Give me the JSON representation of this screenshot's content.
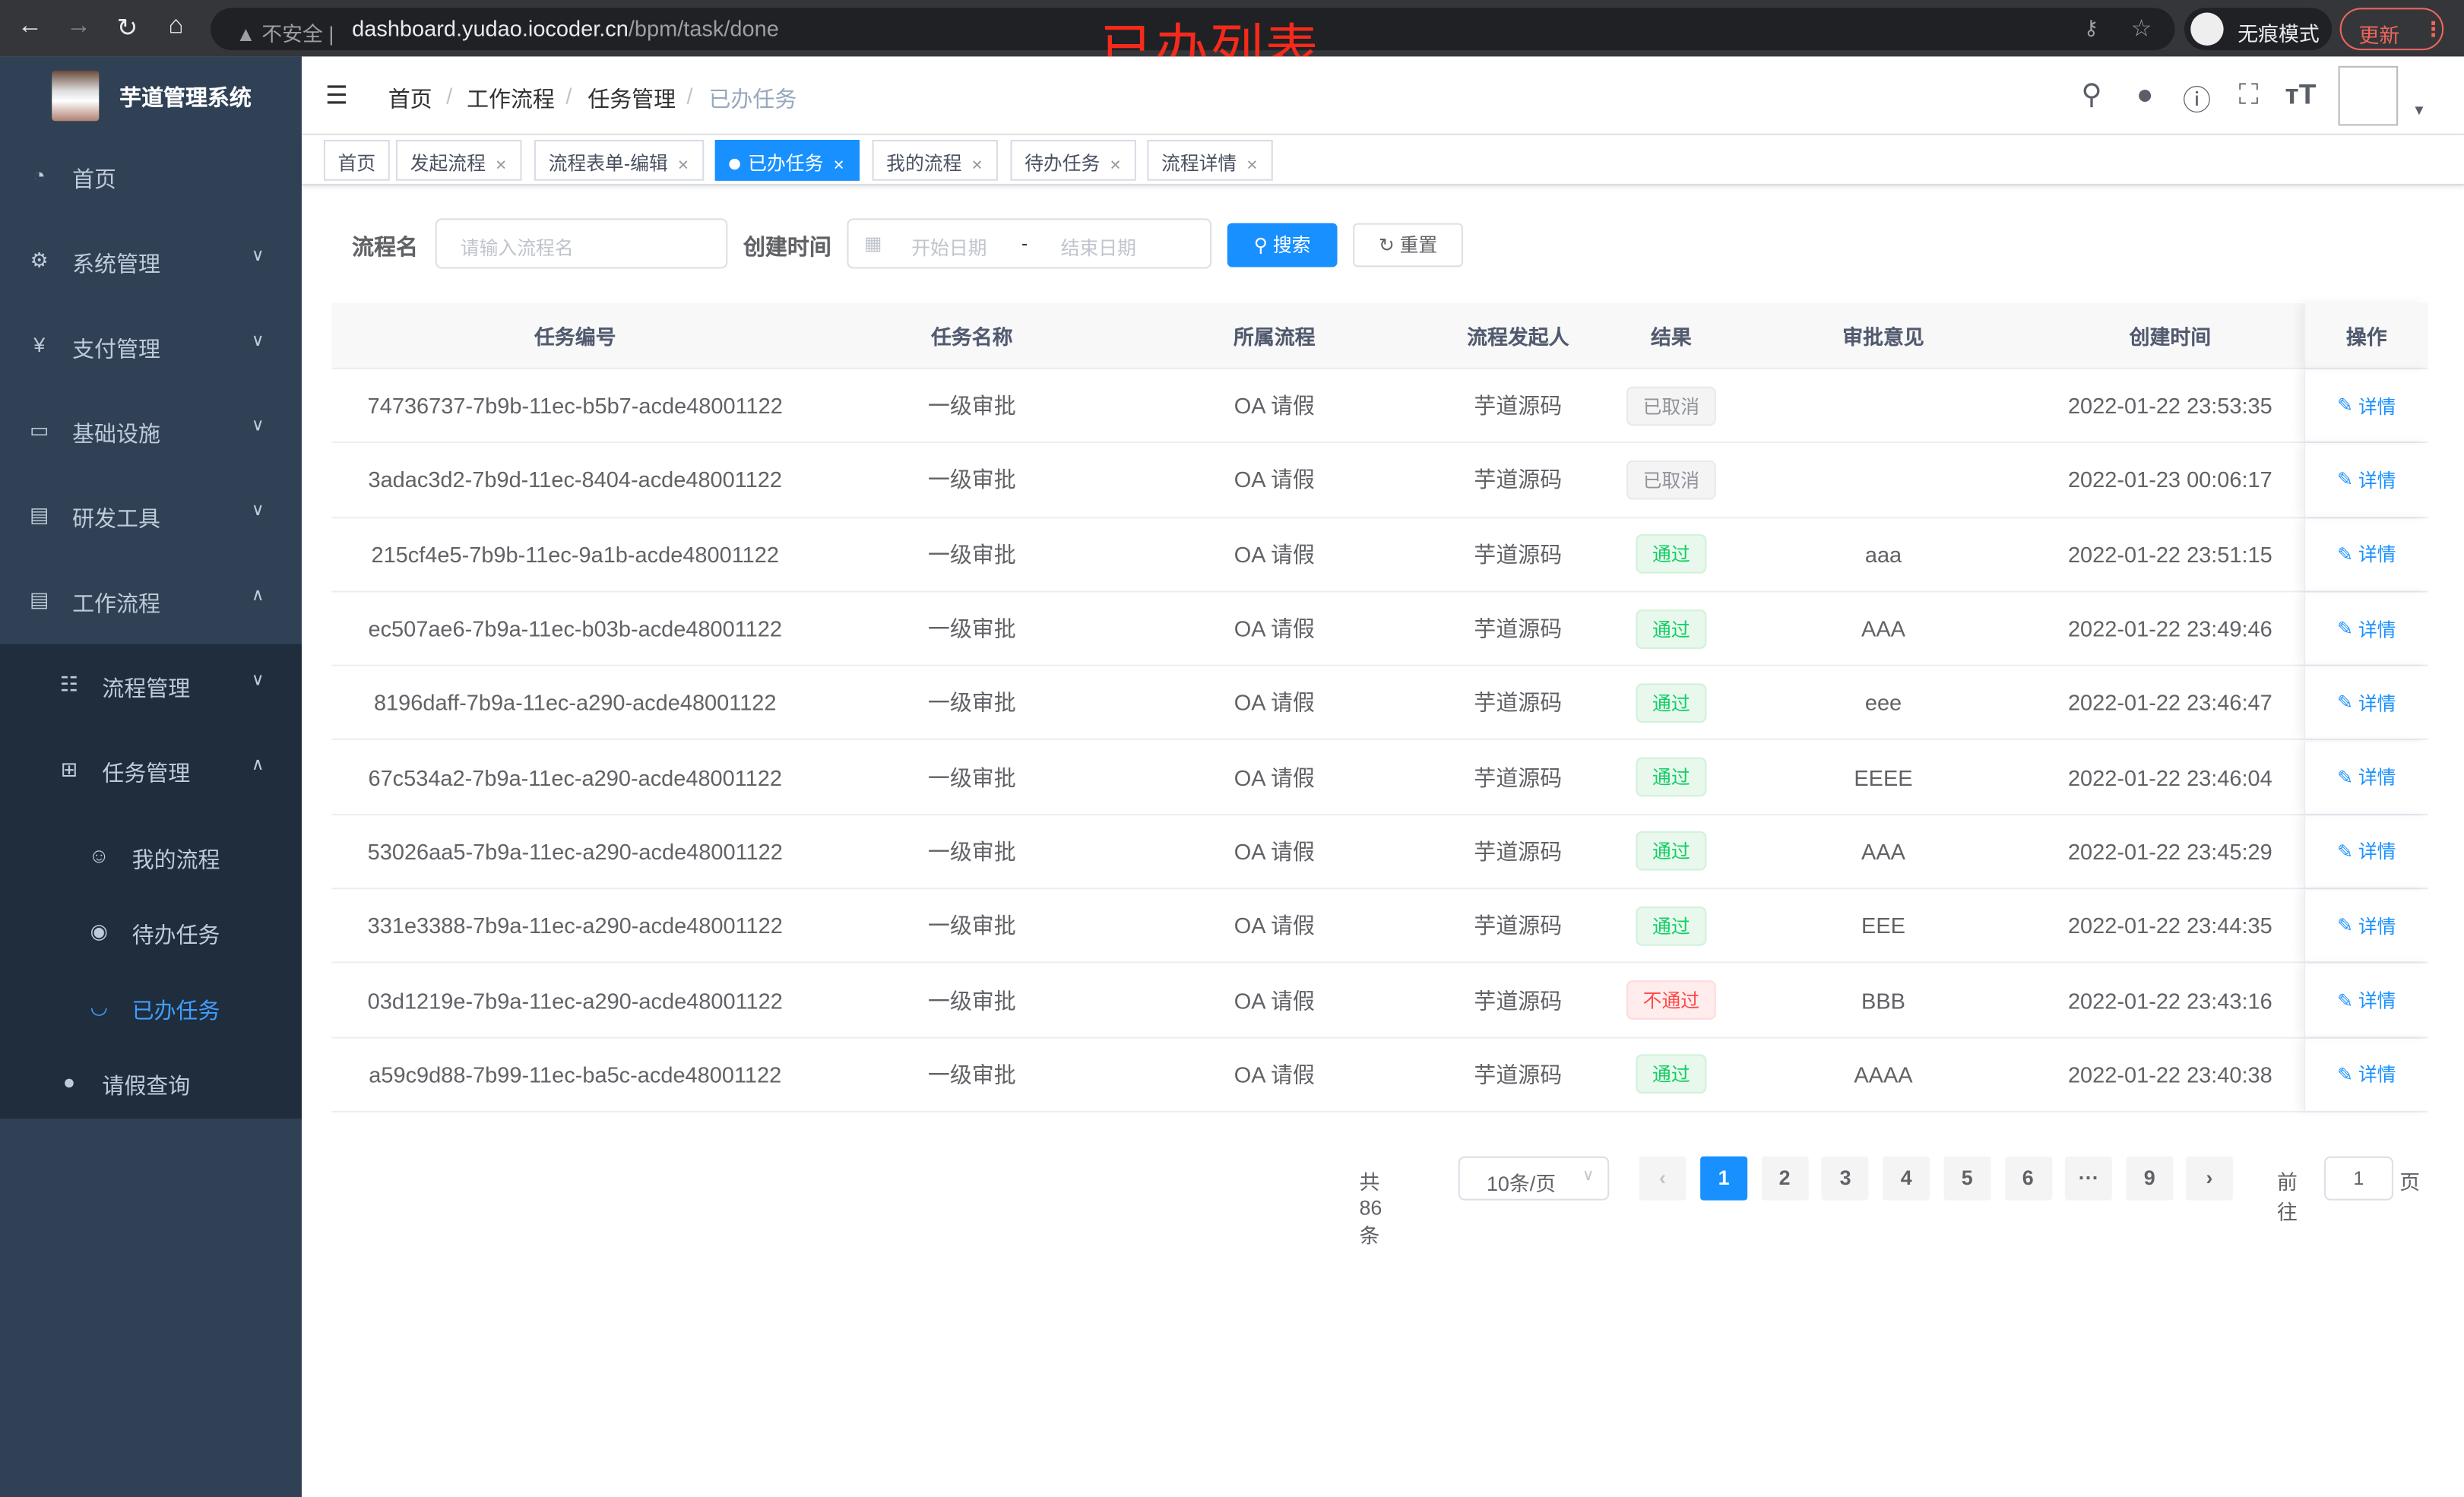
{
  "browser": {
    "insecure": "不安全",
    "url_host": "dashboard.yudao.iocoder.cn",
    "url_path": "/bpm/task/done",
    "incognito": "无痕模式",
    "update": "更新"
  },
  "overlay_title": "已办列表",
  "sidebar": {
    "title": "芋道管理系统",
    "items": [
      {
        "label": "首页",
        "icon": "dashboard-icon"
      },
      {
        "label": "系统管理",
        "icon": "gear-icon"
      },
      {
        "label": "支付管理",
        "icon": "yen-icon"
      },
      {
        "label": "基础设施",
        "icon": "monitor-icon"
      },
      {
        "label": "研发工具",
        "icon": "toolbox-icon"
      },
      {
        "label": "工作流程",
        "icon": "toolbox-icon"
      },
      {
        "label": "流程管理",
        "icon": "list-icon"
      },
      {
        "label": "任务管理",
        "icon": "tree-icon"
      },
      {
        "label": "我的流程",
        "icon": "people-icon"
      },
      {
        "label": "待办任务",
        "icon": "eye-icon"
      },
      {
        "label": "已办任务",
        "icon": "eye-closed-icon"
      },
      {
        "label": "请假查询",
        "icon": "user-icon"
      }
    ]
  },
  "breadcrumb": [
    "首页",
    "工作流程",
    "任务管理",
    "已办任务"
  ],
  "tags": [
    "首页",
    "发起流程",
    "流程表单-编辑",
    "已办任务",
    "我的流程",
    "待办任务",
    "流程详情"
  ],
  "search": {
    "name_label": "流程名",
    "name_placeholder": "请输入流程名",
    "time_label": "创建时间",
    "start_placeholder": "开始日期",
    "sep": "-",
    "end_placeholder": "结束日期",
    "search_btn": "搜索",
    "reset_btn": "重置"
  },
  "table": {
    "headers": [
      "任务编号",
      "任务名称",
      "所属流程",
      "流程发起人",
      "结果",
      "审批意见",
      "创建时间",
      "操作"
    ],
    "op_label": "详情",
    "rows": [
      [
        "74736737-7b9b-11ec-b5b7-acde48001122",
        "一级审批",
        "OA 请假",
        "芋道源码",
        "已取消",
        "",
        "2022-01-22 23:53:35"
      ],
      [
        "3adac3d2-7b9d-11ec-8404-acde48001122",
        "一级审批",
        "OA 请假",
        "芋道源码",
        "已取消",
        "",
        "2022-01-23 00:06:17"
      ],
      [
        "215cf4e5-7b9b-11ec-9a1b-acde48001122",
        "一级审批",
        "OA 请假",
        "芋道源码",
        "通过",
        "aaa",
        "2022-01-22 23:51:15"
      ],
      [
        "ec507ae6-7b9a-11ec-b03b-acde48001122",
        "一级审批",
        "OA 请假",
        "芋道源码",
        "通过",
        "AAA",
        "2022-01-22 23:49:46"
      ],
      [
        "8196daff-7b9a-11ec-a290-acde48001122",
        "一级审批",
        "OA 请假",
        "芋道源码",
        "通过",
        "eee",
        "2022-01-22 23:46:47"
      ],
      [
        "67c534a2-7b9a-11ec-a290-acde48001122",
        "一级审批",
        "OA 请假",
        "芋道源码",
        "通过",
        "EEEE",
        "2022-01-22 23:46:04"
      ],
      [
        "53026aa5-7b9a-11ec-a290-acde48001122",
        "一级审批",
        "OA 请假",
        "芋道源码",
        "通过",
        "AAA",
        "2022-01-22 23:45:29"
      ],
      [
        "331e3388-7b9a-11ec-a290-acde48001122",
        "一级审批",
        "OA 请假",
        "芋道源码",
        "通过",
        "EEE",
        "2022-01-22 23:44:35"
      ],
      [
        "03d1219e-7b9a-11ec-a290-acde48001122",
        "一级审批",
        "OA 请假",
        "芋道源码",
        "不通过",
        "BBB",
        "2022-01-22 23:43:16"
      ],
      [
        "a59c9d88-7b99-11ec-ba5c-acde48001122",
        "一级审批",
        "OA 请假",
        "芋道源码",
        "通过",
        "AAAA",
        "2022-01-22 23:40:38"
      ]
    ]
  },
  "pagination": {
    "total": "共 86 条",
    "page_size": "10条/页",
    "pages": [
      "1",
      "2",
      "3",
      "4",
      "5",
      "6",
      "···",
      "9"
    ],
    "current": "1",
    "goto_label": "前往",
    "goto_value": "1",
    "goto_suffix": "页"
  },
  "colors": {
    "accent": "#1890ff",
    "sidebar": "#304156",
    "pass": "#13ce66",
    "fail": "#ff4949"
  }
}
